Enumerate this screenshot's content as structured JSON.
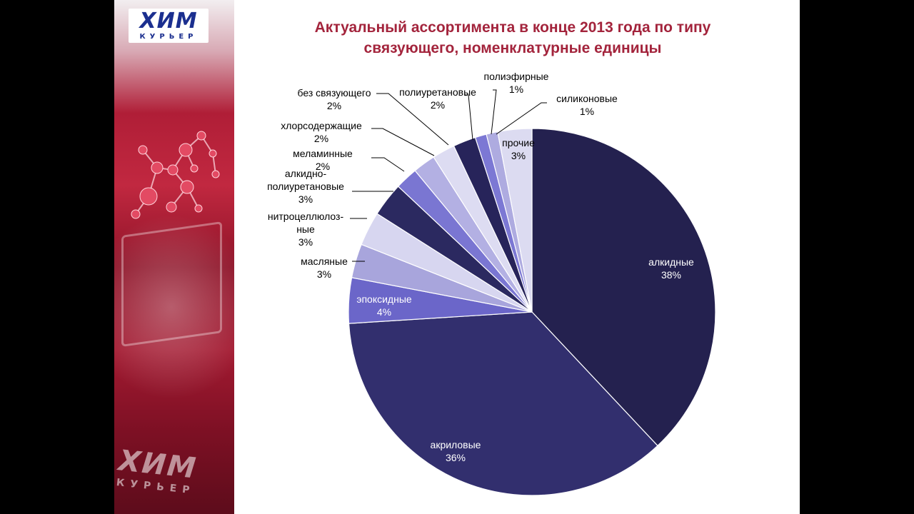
{
  "slide": {
    "title_line1": "Актуальный ассортимента в конце 2013 года по типу",
    "title_line2": "связующего, номенклатурные единицы"
  },
  "logo": {
    "main": "ХИМ",
    "sub": "КУРЬЕР"
  },
  "colors": {
    "title": "#a3243c",
    "label_text": "#000000",
    "slice_border": "#ffffff"
  },
  "chart_data": {
    "type": "pie",
    "title": "Актуальный ассортимента в конце 2013 года по типу связующего, номенклатурные единицы",
    "unit": "%",
    "start": "12 o'clock, clockwise",
    "slices": [
      {
        "name": "алкидные",
        "value": 38,
        "color": "#24214f",
        "label_inside": true
      },
      {
        "name": "акриловые",
        "value": 36,
        "color": "#322f6e",
        "label_inside": true
      },
      {
        "name": "эпоксидные",
        "value": 4,
        "color": "#6b66c9",
        "label_inside": true
      },
      {
        "name": "масляные",
        "value": 3,
        "color": "#a8a5dc",
        "label_inside": false
      },
      {
        "name": "нитроцеллюлоз-ные",
        "value": 3,
        "color": "#d7d6f0",
        "label_inside": false
      },
      {
        "name": "алкидно-полиуретановые",
        "value": 3,
        "color": "#2b2960",
        "label_inside": false
      },
      {
        "name": "меламинные",
        "value": 2,
        "color": "#7a76d2",
        "label_inside": false
      },
      {
        "name": "хлорсодержащие",
        "value": 2,
        "color": "#b3b0e3",
        "label_inside": false
      },
      {
        "name": "без связующего",
        "value": 2,
        "color": "#dddcf2",
        "label_inside": false
      },
      {
        "name": "полиуретановые",
        "value": 2,
        "color": "#27245a",
        "label_inside": false
      },
      {
        "name": "полиэфирные",
        "value": 1,
        "color": "#7c78d4",
        "label_inside": false
      },
      {
        "name": "силиконовые",
        "value": 1,
        "color": "#aeabe0",
        "label_inside": false
      },
      {
        "name": "прочие",
        "value": 3,
        "color": "#dcdbf1",
        "label_inside": true
      }
    ],
    "labels": [
      {
        "lines": [
          "алкидные",
          "38%"
        ],
        "color": "#ffffff"
      },
      {
        "lines": [
          "акриловые",
          "36%"
        ],
        "color": "#ffffff"
      },
      {
        "lines": [
          "эпоксидные",
          "4%"
        ],
        "color": "#ffffff"
      },
      {
        "lines": [
          "масляные",
          "3%"
        ],
        "color": "#000000"
      },
      {
        "lines": [
          "нитроцеллюлоз-",
          "ные",
          "3%"
        ],
        "color": "#000000"
      },
      {
        "lines": [
          "алкидно-",
          "полиуретановые",
          "3%"
        ],
        "color": "#000000"
      },
      {
        "lines": [
          "меламинные",
          "2%"
        ],
        "color": "#000000"
      },
      {
        "lines": [
          "хлорсодержащие",
          "2%"
        ],
        "color": "#000000"
      },
      {
        "lines": [
          "без связующего",
          "2%"
        ],
        "color": "#000000"
      },
      {
        "lines": [
          "полиуретановые",
          "2%"
        ],
        "color": "#000000"
      },
      {
        "lines": [
          "полиэфирные",
          "1%"
        ],
        "color": "#000000"
      },
      {
        "lines": [
          "силиконовые",
          "1%"
        ],
        "color": "#000000"
      },
      {
        "lines": [
          "прочие",
          "3%"
        ],
        "color": "#000000"
      }
    ]
  }
}
